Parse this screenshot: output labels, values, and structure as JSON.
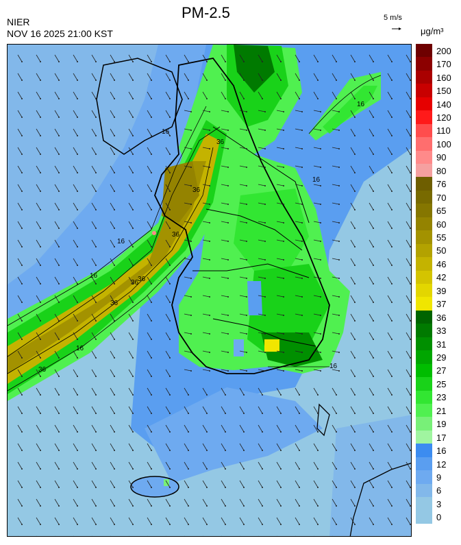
{
  "header": {
    "agency": "NIER",
    "timestamp": "NOV 16 2025 21:00 KST",
    "title": "PM-2.5",
    "wind_reference": "5 m/s",
    "unit": "μg/m³"
  },
  "colorbar": {
    "levels": [
      {
        "value": "200",
        "color": "#6e0000"
      },
      {
        "value": "170",
        "color": "#8c0000"
      },
      {
        "value": "160",
        "color": "#aa0000"
      },
      {
        "value": "150",
        "color": "#c80000"
      },
      {
        "value": "140",
        "color": "#e60000"
      },
      {
        "value": "120",
        "color": "#ff1a1a"
      },
      {
        "value": "110",
        "color": "#ff4d4d"
      },
      {
        "value": "100",
        "color": "#ff6e6e"
      },
      {
        "value": "90",
        "color": "#ff8a8a"
      },
      {
        "value": "80",
        "color": "#f5a0a0"
      },
      {
        "value": "76",
        "color": "#6e5e00"
      },
      {
        "value": "70",
        "color": "#786a00"
      },
      {
        "value": "65",
        "color": "#857600"
      },
      {
        "value": "60",
        "color": "#948300"
      },
      {
        "value": "55",
        "color": "#a39200"
      },
      {
        "value": "50",
        "color": "#b3a200"
      },
      {
        "value": "46",
        "color": "#c4b300"
      },
      {
        "value": "42",
        "color": "#d4c400"
      },
      {
        "value": "39",
        "color": "#e3d600"
      },
      {
        "value": "37",
        "color": "#f0e600"
      },
      {
        "value": "36",
        "color": "#006400"
      },
      {
        "value": "33",
        "color": "#007a00"
      },
      {
        "value": "31",
        "color": "#008f00"
      },
      {
        "value": "29",
        "color": "#00a600"
      },
      {
        "value": "27",
        "color": "#00bd00"
      },
      {
        "value": "25",
        "color": "#19d219"
      },
      {
        "value": "23",
        "color": "#32e632"
      },
      {
        "value": "21",
        "color": "#50f050"
      },
      {
        "value": "19",
        "color": "#78f078"
      },
      {
        "value": "17",
        "color": "#a0f5a0"
      },
      {
        "value": "16",
        "color": "#3c8cf0"
      },
      {
        "value": "12",
        "color": "#5a9ef0"
      },
      {
        "value": "9",
        "color": "#6eaaf0"
      },
      {
        "value": "6",
        "color": "#82b8ea"
      },
      {
        "value": "3",
        "color": "#94c8e4"
      },
      {
        "value": "0",
        "color": "#94c8e4"
      }
    ]
  },
  "contour_labels": [
    "16",
    "16",
    "16",
    "16",
    "16",
    "16",
    "16",
    "36",
    "36",
    "36",
    "36",
    "36",
    "36",
    "36"
  ],
  "wind": {
    "direction": "northwesterly flow over sea, turning westerly over land"
  }
}
